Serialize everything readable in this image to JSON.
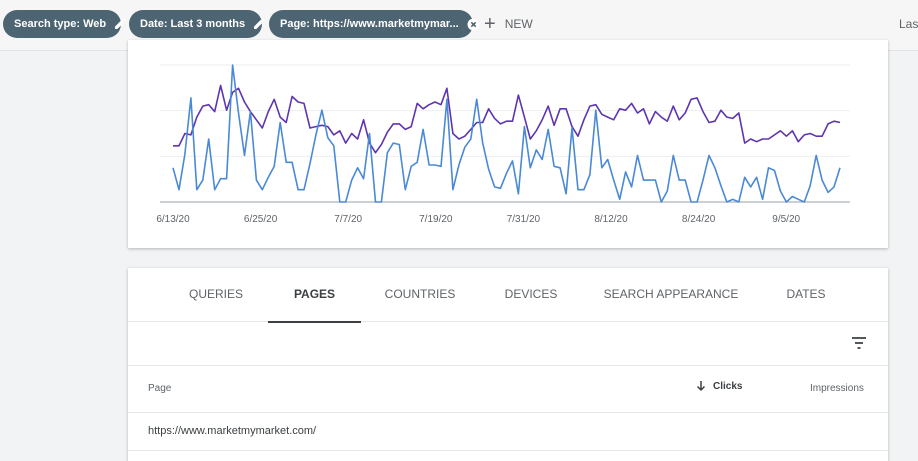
{
  "filters": {
    "chips": [
      {
        "label": "Search type: Web",
        "icon": "pencil-icon"
      },
      {
        "label": "Date: Last 3 months",
        "icon": "pencil-icon"
      },
      {
        "label": "Page: https://www.marketmymar...",
        "icon": "close-circle-icon"
      }
    ],
    "new_label": "NEW",
    "right_label": "Las"
  },
  "chart_data": {
    "type": "line",
    "x_tick_labels": [
      "6/13/20",
      "6/25/20",
      "7/7/20",
      "7/19/20",
      "7/31/20",
      "8/12/20",
      "8/24/20",
      "9/5/20"
    ],
    "ylim": [
      0,
      100
    ],
    "grid": true,
    "legend": "none",
    "series": [
      {
        "color": "#5e35b1",
        "values": [
          41,
          41,
          50,
          49,
          62,
          70,
          71,
          66,
          85,
          67,
          80,
          83,
          73,
          66,
          60,
          54,
          66,
          75,
          62,
          58,
          77,
          73,
          72,
          54,
          55,
          56,
          55,
          49,
          52,
          43,
          50,
          46,
          60,
          43,
          36,
          42,
          51,
          57,
          57,
          53,
          55,
          72,
          68,
          71,
          73,
          71,
          83,
          50,
          46,
          48,
          53,
          58,
          58,
          68,
          61,
          57,
          59,
          59,
          78,
          62,
          46,
          52,
          60,
          70,
          56,
          68,
          68,
          55,
          48,
          60,
          70,
          71,
          64,
          62,
          60,
          68,
          67,
          72,
          65,
          68,
          57,
          66,
          62,
          59,
          70,
          60,
          65,
          75,
          76,
          66,
          58,
          59,
          67,
          62,
          61,
          65,
          43,
          46,
          44,
          46,
          46,
          49,
          52,
          48,
          52,
          44,
          49,
          50,
          48,
          48,
          57,
          59,
          58
        ]
      },
      {
        "color": "#4a89d6",
        "values": [
          25,
          9,
          35,
          76,
          9,
          16,
          46,
          9,
          17,
          17,
          100,
          65,
          34,
          66,
          16,
          9,
          18,
          26,
          58,
          29,
          29,
          9,
          9,
          28,
          49,
          67,
          47,
          41,
          0,
          0,
          16,
          25,
          17,
          50,
          0,
          0,
          36,
          43,
          42,
          9,
          26,
          29,
          53,
          27,
          27,
          26,
          75,
          9,
          27,
          40,
          46,
          75,
          43,
          24,
          11,
          10,
          21,
          30,
          6,
          55,
          25,
          38,
          31,
          53,
          26,
          25,
          6,
          54,
          9,
          9,
          20,
          67,
          25,
          31,
          16,
          2,
          22,
          11,
          34,
          16,
          16,
          16,
          0,
          8,
          34,
          16,
          16,
          0,
          0,
          16,
          34,
          25,
          12,
          0,
          2,
          0,
          18,
          11,
          18,
          2,
          25,
          23,
          8,
          0,
          4,
          2,
          0,
          12,
          34,
          16,
          7,
          11,
          25
        ]
      }
    ]
  },
  "tabs": [
    "QUERIES",
    "PAGES",
    "COUNTRIES",
    "DEVICES",
    "SEARCH APPEARANCE",
    "DATES"
  ],
  "active_tab": "PAGES",
  "table": {
    "columns": {
      "page": "Page",
      "clicks": "Clicks",
      "impressions": "Impressions"
    },
    "sort_icon": "arrow-down-icon",
    "rows": [
      {
        "page": "https://www.marketmymarket.com/"
      }
    ]
  }
}
